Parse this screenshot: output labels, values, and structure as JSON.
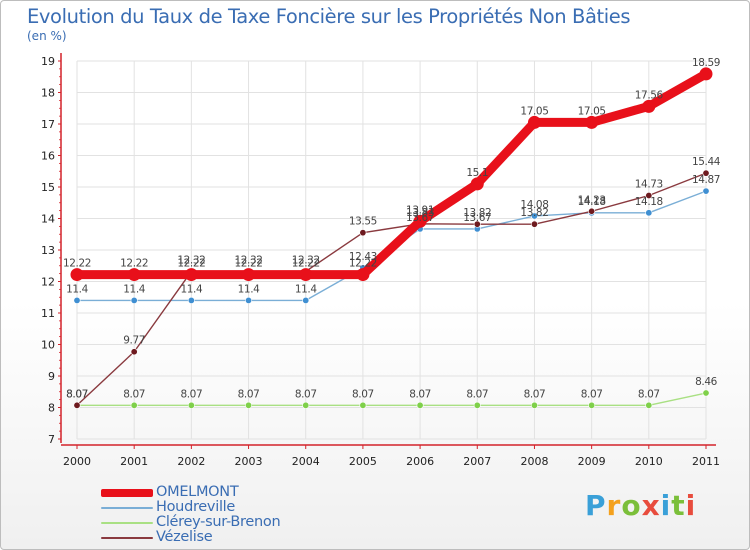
{
  "title": "Evolution du Taux de Taxe Foncière sur les Propriétés Non Bâties",
  "subtitle": "(en %)",
  "logo": {
    "letters": [
      "P",
      "r",
      "o",
      "x",
      "i",
      "t",
      "i"
    ]
  },
  "colors": {
    "axis": "#d3222a",
    "grid": "#e2e2e2",
    "text": "#3a6db3",
    "tick_text": "#222222"
  },
  "chart_data": {
    "type": "line",
    "title": "Evolution du Taux de Taxe Foncière sur les Propriétés Non Bâties",
    "ylabel": "(en %)",
    "xlabel": "",
    "x": [
      "2000",
      "2001",
      "2002",
      "2003",
      "2004",
      "2005",
      "2006",
      "2007",
      "2008",
      "2009",
      "2010",
      "2011"
    ],
    "ylim": [
      7,
      19
    ],
    "yticks": [
      7,
      8,
      9,
      10,
      11,
      12,
      13,
      14,
      15,
      16,
      17,
      18,
      19
    ],
    "grid": true,
    "legend_position": "bottom-left",
    "series": [
      {
        "name": "OMELMONT",
        "color": "#e8101a",
        "width": 9,
        "values": [
          12.22,
          12.22,
          12.22,
          12.22,
          12.22,
          12.22,
          13.91,
          15.1,
          17.05,
          17.05,
          17.56,
          18.59
        ],
        "labels": [
          "12.22",
          "12.22",
          "12.22",
          "12.22",
          "12.22",
          "12.22",
          "13.91",
          "15.1",
          "17.05",
          "17.05",
          "17.56",
          "18.59"
        ]
      },
      {
        "name": "Houdreville",
        "color": "#7aaed6",
        "marker": "#3f8fd2",
        "width": 1.4,
        "values": [
          11.4,
          11.4,
          11.4,
          11.4,
          11.4,
          12.43,
          13.67,
          13.67,
          14.08,
          14.18,
          14.18,
          14.87
        ],
        "labels": [
          "11.4",
          "11.4",
          "11.4",
          "11.4",
          "11.4",
          "12.43",
          "13.67",
          "13.67",
          "14.08",
          "14.18",
          "14.18",
          "14.87"
        ]
      },
      {
        "name": "Clérey-sur-Brenon",
        "color": "#a9e083",
        "marker": "#7fd04a",
        "width": 1.4,
        "values": [
          8.07,
          8.07,
          8.07,
          8.07,
          8.07,
          8.07,
          8.07,
          8.07,
          8.07,
          8.07,
          8.07,
          8.46
        ],
        "labels": [
          "8.07",
          "8.07",
          "8.07",
          "8.07",
          "8.07",
          "8.07",
          "8.07",
          "8.07",
          "8.07",
          "8.07",
          "8.07",
          "8.46"
        ]
      },
      {
        "name": "Vézelise",
        "color": "#8a3a3f",
        "marker": "#6e1a1f",
        "width": 1.4,
        "values": [
          8.07,
          9.77,
          12.32,
          12.32,
          12.32,
          13.55,
          13.83,
          13.82,
          13.82,
          14.23,
          14.73,
          15.44
        ],
        "labels": [
          "8.07",
          "9.77",
          "12.32",
          "12.32",
          "12.32",
          "13.55",
          "13.83",
          "13.82",
          "13.82",
          "14.23",
          "14.73",
          "15.44"
        ]
      }
    ]
  }
}
